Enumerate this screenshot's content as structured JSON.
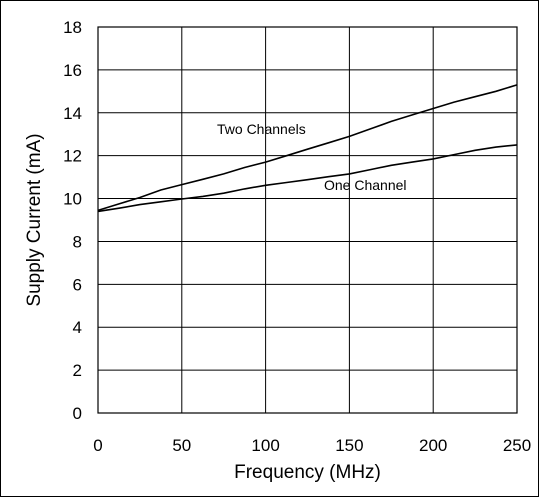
{
  "chart_data": {
    "type": "line",
    "xlabel": "Frequency (MHz)",
    "ylabel": "Supply Current (mA)",
    "xlim": [
      0,
      250
    ],
    "ylim": [
      0,
      18
    ],
    "x_ticks": [
      0,
      50,
      100,
      150,
      200,
      250
    ],
    "y_ticks": [
      0,
      2,
      4,
      6,
      8,
      10,
      12,
      14,
      16,
      18
    ],
    "grid": true,
    "line_color": "#000000",
    "series": [
      {
        "name": "Two Channels",
        "x": [
          0,
          12.5,
          25,
          37.5,
          50,
          62.5,
          75,
          87.5,
          100,
          112.5,
          125,
          137.5,
          150,
          162.5,
          175,
          187.5,
          200,
          212.5,
          225,
          237.5,
          250
        ],
        "values": [
          9.45,
          9.75,
          10.05,
          10.4,
          10.65,
          10.9,
          11.15,
          11.45,
          11.7,
          12.0,
          12.3,
          12.6,
          12.9,
          13.25,
          13.6,
          13.9,
          14.2,
          14.5,
          14.75,
          15.0,
          15.3
        ]
      },
      {
        "name": "One Channel",
        "x": [
          0,
          12.5,
          25,
          37.5,
          50,
          62.5,
          75,
          87.5,
          100,
          112.5,
          125,
          137.5,
          150,
          162.5,
          175,
          187.5,
          200,
          212.5,
          225,
          237.5,
          250
        ],
        "values": [
          9.4,
          9.55,
          9.72,
          9.85,
          9.98,
          10.1,
          10.25,
          10.45,
          10.62,
          10.75,
          10.88,
          11.02,
          11.15,
          11.35,
          11.55,
          11.7,
          11.85,
          12.05,
          12.25,
          12.4,
          12.5
        ]
      }
    ]
  }
}
